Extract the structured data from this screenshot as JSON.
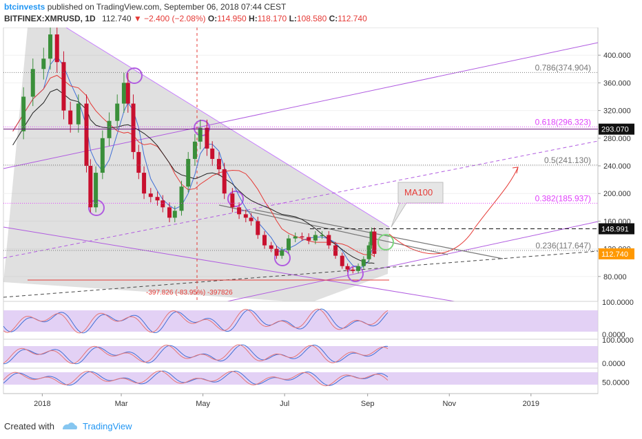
{
  "header": {
    "author": "btcinvests",
    "published_text": "published on TradingView.com, September 06, 2018 07:44 CEST",
    "symbol": "BITFINEX:XMRUSD, 1D",
    "last": "112.740",
    "change_arrow": "▼",
    "change": "−2.400 (−2.08%)",
    "open_label": "O:",
    "open": "114.950",
    "high_label": "H:",
    "high": "118.170",
    "low_label": "L:",
    "low": "108.580",
    "close_label": "C:",
    "close": "112.740"
  },
  "footer": {
    "created_with": "Created with",
    "brand": "TradingView"
  },
  "chart_data": {
    "type": "candlestick",
    "price_axis": {
      "ticks": [
        "400.000",
        "360.000",
        "320.000",
        "280.000",
        "240.000",
        "200.000",
        "160.000",
        "120.000",
        "80.000"
      ],
      "tick_values": [
        400,
        360,
        320,
        280,
        240,
        200,
        160,
        120,
        80
      ],
      "ylim": [
        44,
        440
      ],
      "current_price_label": "112.740",
      "current_price": 112.74,
      "marked_levels": [
        {
          "label": "293.070",
          "value": 293.07
        },
        {
          "label": "148.991",
          "value": 148.991
        }
      ]
    },
    "time_axis": {
      "labels": [
        "2018",
        "Mar",
        "May",
        "Jul",
        "Sep",
        "Nov",
        "2019"
      ],
      "dates": [
        "2018-01-01",
        "2018-03-01",
        "2018-05-01",
        "2018-07-01",
        "2018-09-01",
        "2018-11-01",
        "2019-01-01"
      ]
    },
    "fibonacci": [
      {
        "label": "0.786(374.904)",
        "ratio": 0.786,
        "value": 374.904,
        "color": "#777777"
      },
      {
        "label": "0.618(296.323)",
        "ratio": 0.618,
        "value": 296.323,
        "color": "#e040fb"
      },
      {
        "label": "0.5(241.130)",
        "ratio": 0.5,
        "value": 241.13,
        "color": "#777777"
      },
      {
        "label": "0.382(185.937)",
        "ratio": 0.382,
        "value": 185.937,
        "color": "#e040fb"
      },
      {
        "label": "0.236(117.647)",
        "ratio": 0.236,
        "value": 117.647,
        "color": "#777777"
      }
    ],
    "annotations": {
      "ma_label": "MA100",
      "drawdown_label": "-397.826 (-83.95%) -397826"
    },
    "close_series": [
      [
        "2017-12-10",
        290
      ],
      [
        "2017-12-18",
        340
      ],
      [
        "2017-12-25",
        380
      ],
      [
        "2018-01-02",
        395
      ],
      [
        "2018-01-07",
        430
      ],
      [
        "2018-01-12",
        390
      ],
      [
        "2018-01-17",
        320
      ],
      [
        "2018-01-22",
        300
      ],
      [
        "2018-01-28",
        330
      ],
      [
        "2018-02-03",
        240
      ],
      [
        "2018-02-06",
        180
      ],
      [
        "2018-02-10",
        230
      ],
      [
        "2018-02-15",
        280
      ],
      [
        "2018-02-20",
        305
      ],
      [
        "2018-02-26",
        330
      ],
      [
        "2018-03-03",
        360
      ],
      [
        "2018-03-06",
        330
      ],
      [
        "2018-03-10",
        260
      ],
      [
        "2018-03-14",
        230
      ],
      [
        "2018-03-18",
        200
      ],
      [
        "2018-03-23",
        195
      ],
      [
        "2018-03-28",
        190
      ],
      [
        "2018-04-01",
        180
      ],
      [
        "2018-04-06",
        165
      ],
      [
        "2018-04-10",
        175
      ],
      [
        "2018-04-15",
        210
      ],
      [
        "2018-04-20",
        250
      ],
      [
        "2018-04-25",
        275
      ],
      [
        "2018-04-29",
        295
      ],
      [
        "2018-05-04",
        265
      ],
      [
        "2018-05-08",
        250
      ],
      [
        "2018-05-13",
        235
      ],
      [
        "2018-05-17",
        200
      ],
      [
        "2018-05-23",
        180
      ],
      [
        "2018-05-28",
        170
      ],
      [
        "2018-06-02",
        165
      ],
      [
        "2018-06-06",
        160
      ],
      [
        "2018-06-11",
        140
      ],
      [
        "2018-06-16",
        125
      ],
      [
        "2018-06-21",
        120
      ],
      [
        "2018-06-25",
        110
      ],
      [
        "2018-06-29",
        118
      ],
      [
        "2018-07-04",
        135
      ],
      [
        "2018-07-09",
        138
      ],
      [
        "2018-07-14",
        137
      ],
      [
        "2018-07-19",
        132
      ],
      [
        "2018-07-24",
        140
      ],
      [
        "2018-07-29",
        140
      ],
      [
        "2018-08-03",
        125
      ],
      [
        "2018-08-08",
        110
      ],
      [
        "2018-08-13",
        95
      ],
      [
        "2018-08-17",
        90
      ],
      [
        "2018-08-21",
        88
      ],
      [
        "2018-08-25",
        95
      ],
      [
        "2018-08-29",
        105
      ],
      [
        "2018-09-02",
        125
      ],
      [
        "2018-09-04",
        145
      ],
      [
        "2018-09-06",
        112.74
      ]
    ],
    "indicators": {
      "oscillator_1": {
        "ticks": [
          "100.0000",
          "0.0000"
        ],
        "tick_values": [
          100,
          0
        ]
      },
      "oscillator_2": {
        "ticks": [
          "100.0000",
          "0.0000"
        ],
        "tick_values": [
          100,
          0
        ]
      },
      "oscillator_3": {
        "ticks": [
          "50.0000"
        ],
        "tick_values": [
          50
        ]
      }
    },
    "colors": {
      "up": "#3a8f3a",
      "down": "#c8102e",
      "channel_fill": "#9e9e9e",
      "trendline": "#b05be0",
      "ma_red": "#e53935",
      "ma_black": "#222222",
      "ma_blue": "#3f6fd6",
      "osc_band": "#dcc6f2",
      "price_tag": "#ff9800"
    }
  }
}
